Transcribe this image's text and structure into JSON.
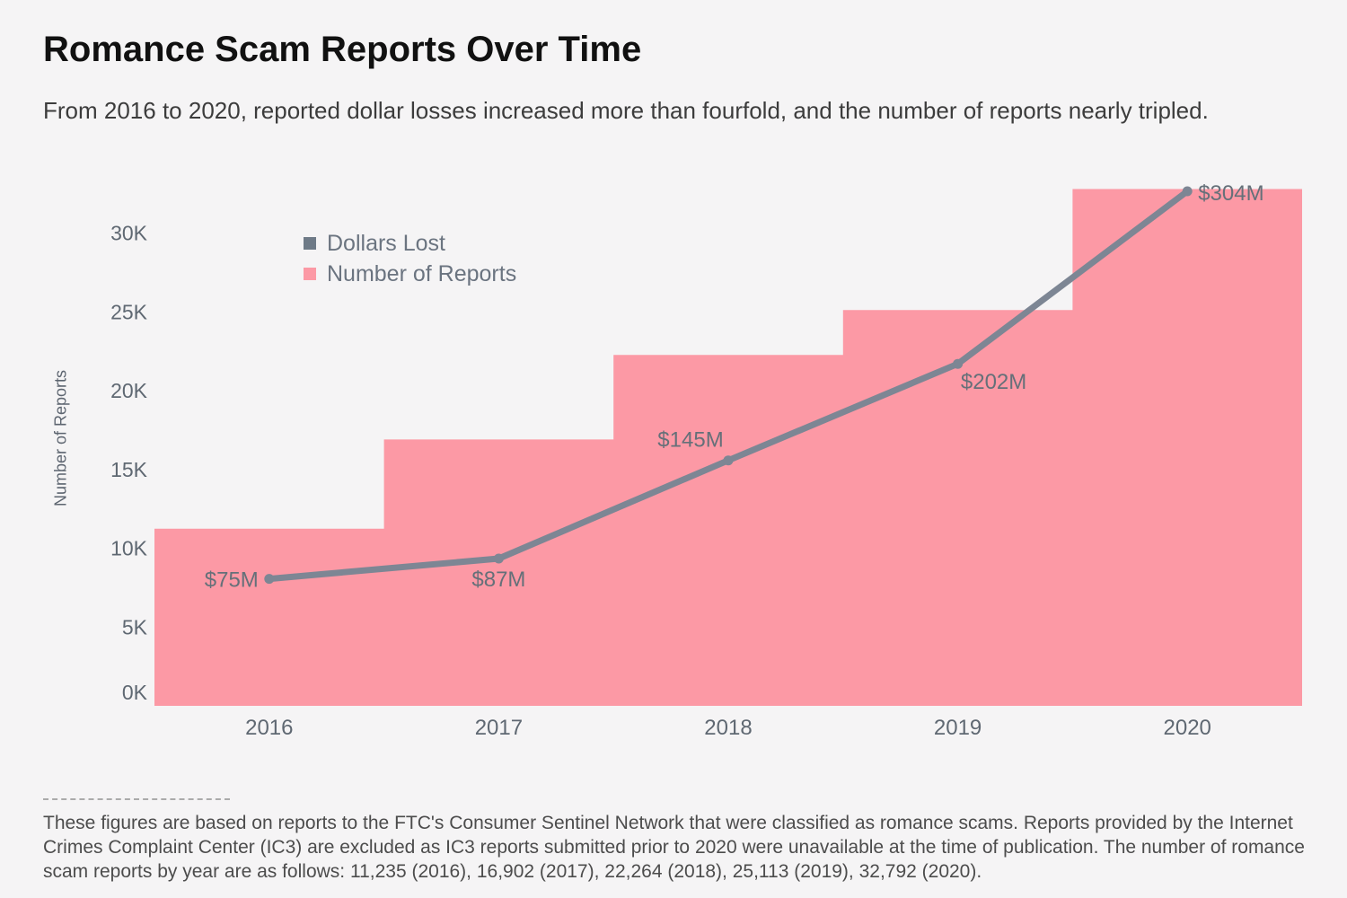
{
  "page": {
    "background": "#f5f4f5"
  },
  "header": {
    "title": "Romance Scam Reports Over Time",
    "subtitle": "From 2016 to 2020, reported dollar losses increased more than fourfold, and the number of reports nearly tripled."
  },
  "legend": {
    "items": [
      {
        "label": "Dollars Lost",
        "color": "#6E7A87"
      },
      {
        "label": "Number of Reports",
        "color": "#FC99A5"
      }
    ]
  },
  "chart_data": {
    "type": "area",
    "subtype": "step-area with line overlay",
    "title": "Romance Scam Reports Over Time",
    "categories": [
      "2016",
      "2017",
      "2018",
      "2019",
      "2020"
    ],
    "series": [
      {
        "name": "Number of Reports",
        "type": "step-area",
        "color": "#FC99A5",
        "values": [
          11235,
          16902,
          22264,
          25113,
          32792
        ]
      },
      {
        "name": "Dollars Lost",
        "type": "line",
        "color": "#7D8694",
        "values_millions": [
          75,
          87,
          145,
          202,
          304
        ],
        "point_labels": [
          "$75M",
          "$87M",
          "$145M",
          "$202M",
          "$304M"
        ]
      }
    ],
    "xlabel": "",
    "ylabel": "Number of Reports",
    "yticks": [
      "0K",
      "5K",
      "10K",
      "15K",
      "20K",
      "25K",
      "30K"
    ],
    "ytick_values": [
      0,
      5000,
      10000,
      15000,
      20000,
      25000,
      30000
    ],
    "ylim": [
      0,
      33400
    ],
    "grid": false,
    "legend_position": "top-left-inside",
    "colors": {
      "axis_text": "#5f6872",
      "point_label_text": "#657079"
    }
  },
  "footnote": {
    "text": "These figures are based on reports to the FTC's Consumer Sentinel Network that were classified as romance scams. Reports provided by the Internet Crimes Complaint Center (IC3) are excluded as IC3 reports submitted prior to 2020 were unavailable at the time of publication. The number of romance scam reports by year are as follows: 11,235 (2016), 16,902 (2017), 22,264 (2018), 25,113 (2019), 32,792 (2020)."
  }
}
